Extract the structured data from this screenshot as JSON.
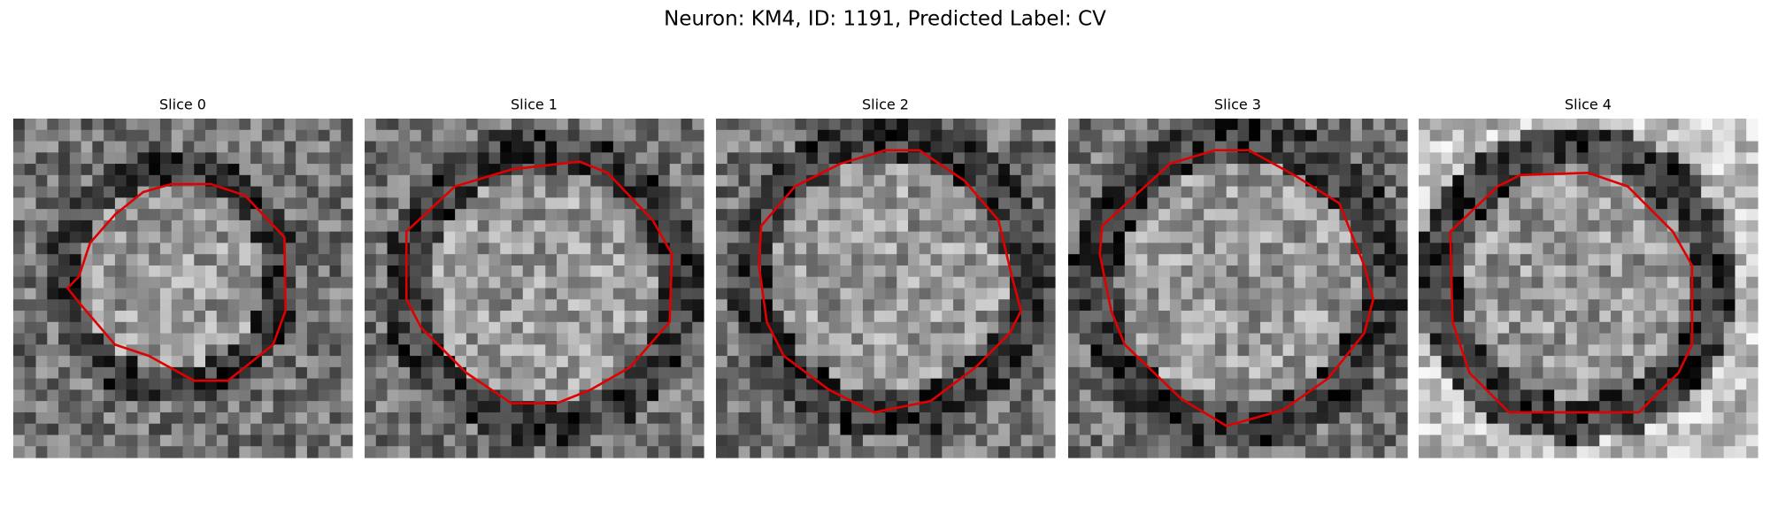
{
  "title": "Neuron: KM4, ID: 1191, Predicted Label: CV",
  "panels": [
    {
      "title": "Slice 0"
    },
    {
      "title": "Slice 1"
    },
    {
      "title": "Slice 2"
    },
    {
      "title": "Slice 3"
    },
    {
      "title": "Slice 4"
    }
  ]
}
